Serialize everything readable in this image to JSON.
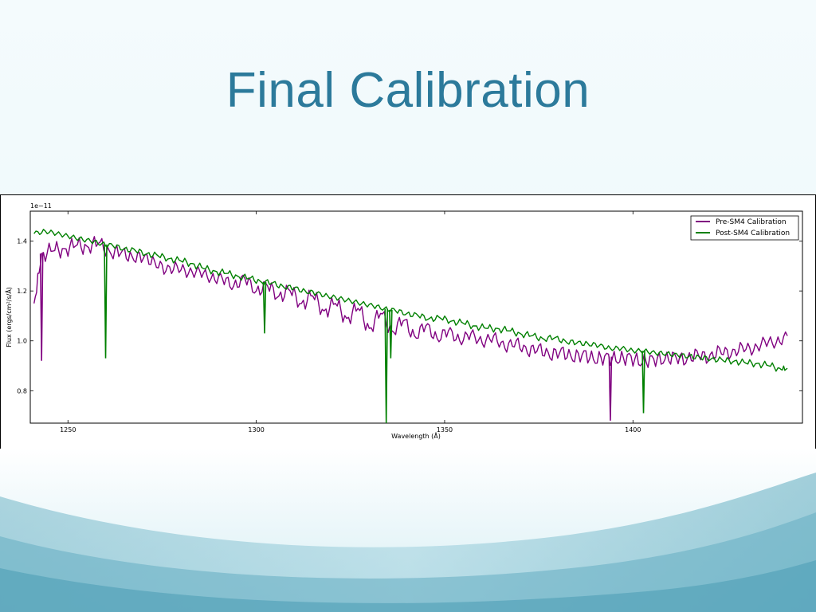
{
  "slide": {
    "title": "Final Calibration"
  },
  "theme": {
    "title_color": "#2c7a9b",
    "band_color_dark": "#5aa9bd",
    "band_color_light": "#d6eef4"
  },
  "chart_data": {
    "type": "line",
    "title": "",
    "xlabel": "Wavelength (Å)",
    "ylabel": "Flux (ergs/cm²/s/Å)",
    "offset_label": "1e−11",
    "xlim": [
      1240,
      1445
    ],
    "ylim": [
      0.67,
      1.52
    ],
    "xticks": [
      1250,
      1300,
      1350,
      1400
    ],
    "yticks": [
      0.8,
      1.0,
      1.2,
      1.4
    ],
    "legend_position": "top-right",
    "series": [
      {
        "name": "Pre-SM4 Calibration",
        "color": "#800080",
        "x": [
          1241,
          1243,
          1246,
          1249,
          1252,
          1255,
          1258,
          1261,
          1264,
          1267,
          1270,
          1273,
          1276,
          1279,
          1282,
          1285,
          1288,
          1291,
          1294,
          1297,
          1300,
          1303,
          1306,
          1309,
          1312,
          1315,
          1318,
          1321,
          1324,
          1327,
          1330,
          1333,
          1336,
          1339,
          1342,
          1345,
          1348,
          1351,
          1354,
          1357,
          1360,
          1363,
          1366,
          1369,
          1372,
          1375,
          1378,
          1381,
          1384,
          1387,
          1390,
          1393,
          1396,
          1399,
          1402,
          1405,
          1408,
          1411,
          1414,
          1417,
          1420,
          1423,
          1426,
          1429,
          1432,
          1435,
          1438,
          1441
        ],
        "y": [
          1.15,
          1.35,
          1.36,
          1.37,
          1.38,
          1.38,
          1.39,
          1.36,
          1.35,
          1.34,
          1.33,
          1.32,
          1.28,
          1.3,
          1.27,
          1.28,
          1.25,
          1.25,
          1.22,
          1.25,
          1.2,
          1.22,
          1.18,
          1.2,
          1.15,
          1.18,
          1.12,
          1.15,
          1.09,
          1.13,
          1.05,
          1.11,
          1.04,
          1.08,
          1.02,
          1.06,
          1.01,
          1.04,
          1.0,
          1.03,
          0.99,
          1.02,
          0.97,
          1.0,
          0.95,
          0.98,
          0.93,
          0.97,
          0.92,
          0.96,
          0.91,
          0.95,
          0.91,
          0.95,
          0.9,
          0.94,
          0.91,
          0.95,
          0.91,
          0.96,
          0.92,
          0.97,
          0.94,
          0.98,
          0.96,
          1.0,
          0.99,
          1.02
        ]
      },
      {
        "name": "Post-SM4 Calibration",
        "color": "#008000",
        "x": [
          1241,
          1244,
          1247,
          1250,
          1253,
          1256,
          1259,
          1262,
          1265,
          1268,
          1271,
          1274,
          1277,
          1280,
          1283,
          1286,
          1289,
          1292,
          1295,
          1298,
          1301,
          1304,
          1307,
          1310,
          1313,
          1316,
          1319,
          1322,
          1325,
          1328,
          1331,
          1334,
          1337,
          1340,
          1343,
          1346,
          1349,
          1352,
          1355,
          1358,
          1361,
          1364,
          1367,
          1370,
          1373,
          1376,
          1379,
          1382,
          1385,
          1388,
          1391,
          1394,
          1397,
          1400,
          1403,
          1406,
          1409,
          1412,
          1415,
          1418,
          1421,
          1424,
          1427,
          1430,
          1433,
          1436,
          1439,
          1441
        ],
        "y": [
          1.43,
          1.44,
          1.43,
          1.42,
          1.41,
          1.4,
          1.39,
          1.38,
          1.37,
          1.36,
          1.35,
          1.34,
          1.33,
          1.32,
          1.31,
          1.29,
          1.28,
          1.27,
          1.26,
          1.25,
          1.24,
          1.23,
          1.22,
          1.21,
          1.2,
          1.19,
          1.18,
          1.17,
          1.16,
          1.15,
          1.14,
          1.13,
          1.12,
          1.11,
          1.1,
          1.09,
          1.09,
          1.08,
          1.07,
          1.06,
          1.05,
          1.05,
          1.04,
          1.03,
          1.02,
          1.01,
          1.01,
          1.0,
          0.99,
          0.99,
          0.98,
          0.97,
          0.97,
          0.96,
          0.96,
          0.95,
          0.95,
          0.94,
          0.94,
          0.93,
          0.93,
          0.92,
          0.92,
          0.91,
          0.91,
          0.9,
          0.89,
          0.89
        ]
      }
    ],
    "absorption_features": [
      {
        "series": "Post-SM4 Calibration",
        "x": 1260,
        "y": 0.93
      },
      {
        "series": "Pre-SM4 Calibration",
        "x": 1243,
        "y": 0.92
      },
      {
        "series": "Post-SM4 Calibration",
        "x": 1302.2,
        "y": 1.03
      },
      {
        "series": "Post-SM4 Calibration",
        "x": 1334.5,
        "y": 0.67
      },
      {
        "series": "Post-SM4 Calibration",
        "x": 1335.7,
        "y": 0.93
      },
      {
        "series": "Pre-SM4 Calibration",
        "x": 1394,
        "y": 0.68
      },
      {
        "series": "Post-SM4 Calibration",
        "x": 1402.8,
        "y": 0.71
      }
    ]
  }
}
